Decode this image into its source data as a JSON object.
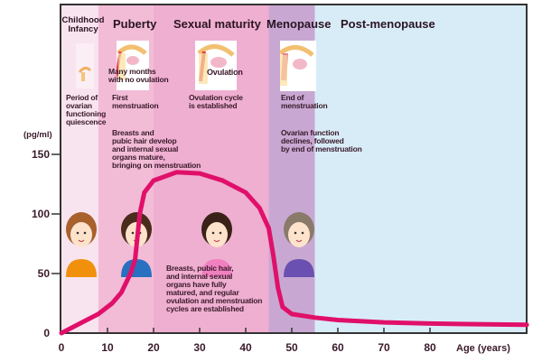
{
  "stages": [
    {
      "name": "Childhood\nInfancy",
      "color": "#f8e4ee",
      "from": 0,
      "to": 8
    },
    {
      "name": "Puberty",
      "color": "#f2bcd6",
      "from": 8,
      "to": 20
    },
    {
      "name": "Sexual maturity",
      "color": "#efafd0",
      "from": 20,
      "to": 45
    },
    {
      "name": "Menopause",
      "color": "#c8a8d2",
      "from": 45,
      "to": 55
    },
    {
      "name": "Post-menopause",
      "color": "#d8ecf8",
      "from": 55,
      "to": 101
    }
  ],
  "notes": {
    "childhood": "Period of\novarian\nfunctioning\nquiescence",
    "puberty_icon": "Many months\nwith no ovulation",
    "puberty_first": "First\nmenstruation",
    "puberty_body": "Breasts and\npubic hair develop\nand internal sexual\norgans mature,\nbringing on menstruation",
    "maturity_icon": "Ovulation",
    "maturity_cycle": "Ovulation cycle\nis established",
    "maturity_body": "Breasts, pubic hair,\nand internal sexual\norgans have fully\nmatured, and regular\novulation and menstruation\ncycles are established",
    "menopause_end": "End of\nmenstruation",
    "menopause_body": "Ovarian function\ndeclines, followed\nby end of menstruation"
  },
  "chart_data": {
    "type": "line",
    "xlabel": "Age (years)",
    "ylabel": "(pg/ml)",
    "xlim": [
      0,
      101
    ],
    "ylim": [
      0,
      150
    ],
    "x_ticks": [
      "0",
      "10",
      "20",
      "30",
      "40",
      "50",
      "60",
      "70",
      "80"
    ],
    "y_ticks": [
      "0",
      "50",
      "100",
      "150"
    ],
    "series": [
      {
        "color": "#e0106a",
        "x": [
          0,
          4,
          8,
          11,
          13,
          15,
          16,
          17,
          18,
          20,
          25,
          30,
          35,
          40,
          43,
          45,
          46,
          47,
          48,
          50,
          55,
          60,
          70,
          80,
          90,
          101
        ],
        "y": [
          0,
          8,
          16,
          25,
          34,
          50,
          62,
          100,
          118,
          128,
          135,
          134,
          128,
          118,
          105,
          88,
          65,
          38,
          22,
          16,
          13,
          11,
          9,
          8,
          7.5,
          7
        ]
      }
    ]
  }
}
